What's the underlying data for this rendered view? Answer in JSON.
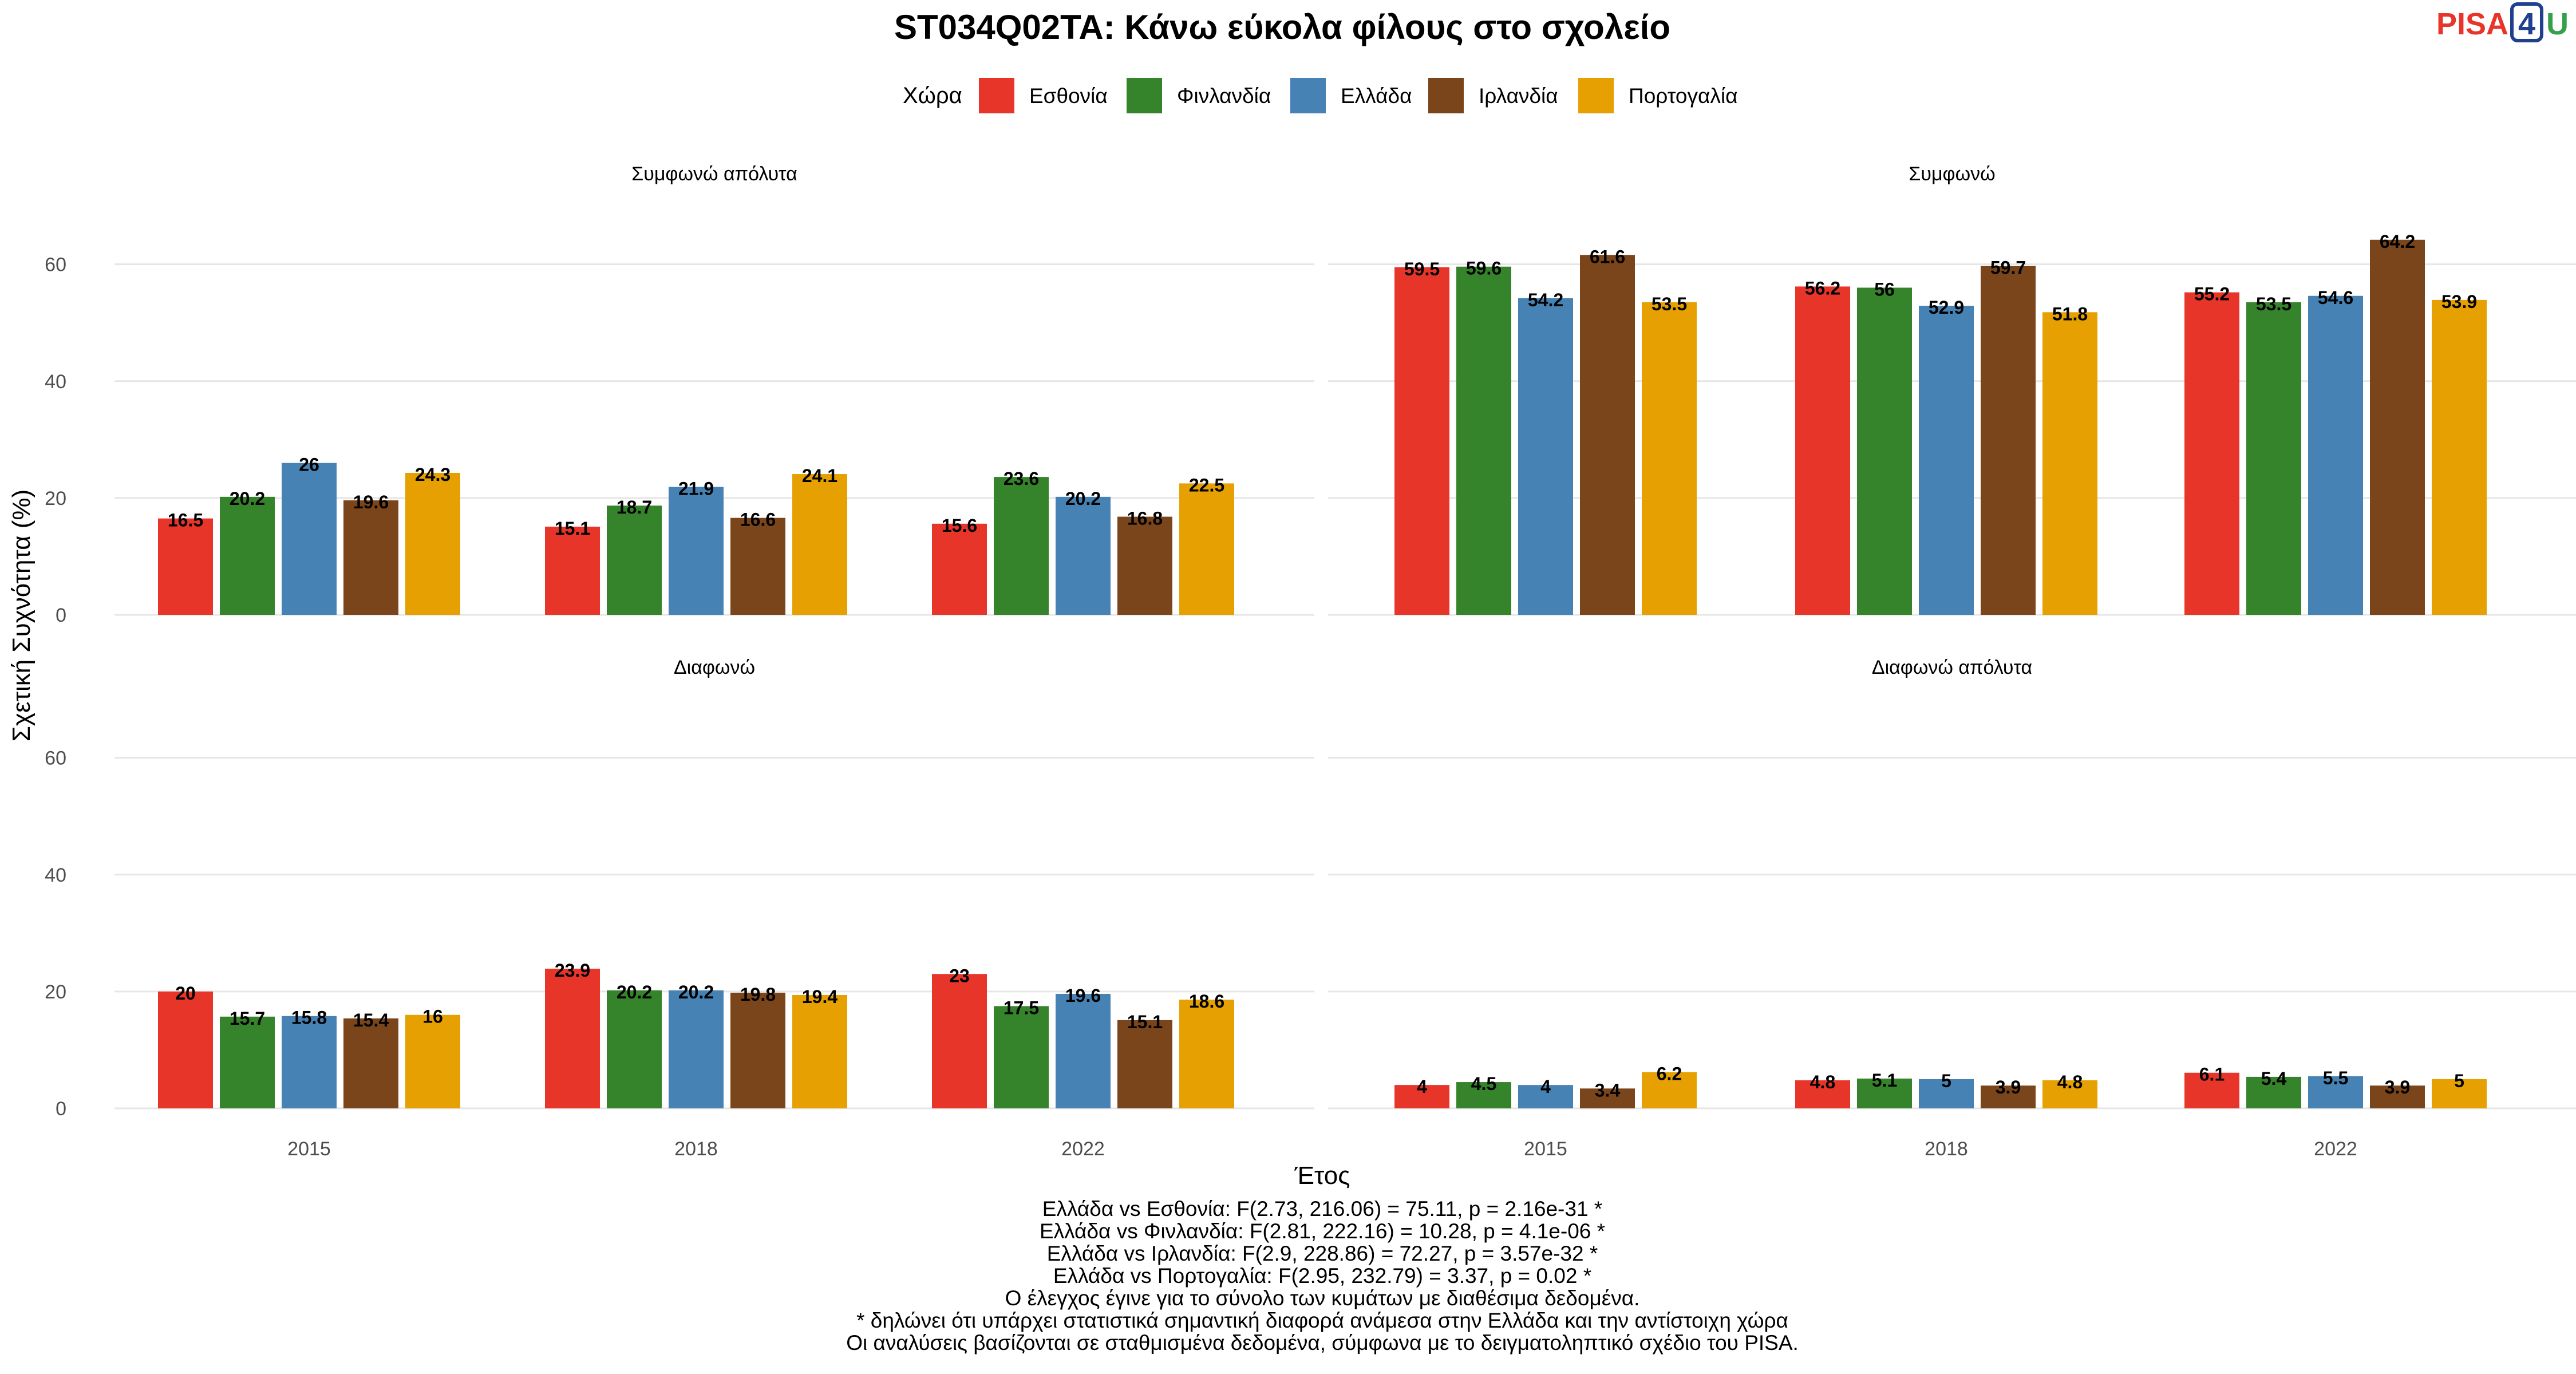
{
  "chart_data": {
    "type": "bar",
    "title": "ST034Q02TA: Κάνω εύκολα φίλους στο σχολείο",
    "xlabel": "Έτος",
    "ylabel": "Σχετική Συχνότητα (%)",
    "ylim": [
      0,
      68
    ],
    "yticks": [
      0,
      20,
      40,
      60
    ],
    "grid": true,
    "legend": {
      "title": "Χώρα",
      "placement": "top",
      "entries": [
        "Εσθονία",
        "Φινλανδία",
        "Ελλάδα",
        "Ιρλανδία",
        "Πορτογαλία"
      ]
    },
    "categories": [
      "2015",
      "2018",
      "2022"
    ],
    "colors": [
      "#E8352A",
      "#35832A",
      "#4682B4",
      "#7A451A",
      "#E6A001"
    ],
    "panels": [
      {
        "title": "Συμφωνώ απόλυτα",
        "series": [
          {
            "name": "Εσθονία",
            "values": [
              16.5,
              15.1,
              15.6
            ]
          },
          {
            "name": "Φινλανδία",
            "values": [
              20.2,
              18.7,
              23.6
            ]
          },
          {
            "name": "Ελλάδα",
            "values": [
              26,
              21.9,
              20.2
            ]
          },
          {
            "name": "Ιρλανδία",
            "values": [
              19.6,
              16.6,
              16.8
            ]
          },
          {
            "name": "Πορτογαλία",
            "values": [
              24.3,
              24.1,
              22.5
            ]
          }
        ]
      },
      {
        "title": "Συμφωνώ",
        "series": [
          {
            "name": "Εσθονία",
            "values": [
              59.5,
              56.2,
              55.2
            ]
          },
          {
            "name": "Φινλανδία",
            "values": [
              59.6,
              56,
              53.5
            ]
          },
          {
            "name": "Ελλάδα",
            "values": [
              54.2,
              52.9,
              54.6
            ]
          },
          {
            "name": "Ιρλανδία",
            "values": [
              61.6,
              59.7,
              64.2
            ]
          },
          {
            "name": "Πορτογαλία",
            "values": [
              53.5,
              51.8,
              53.9
            ]
          }
        ]
      },
      {
        "title": "Διαφωνώ",
        "series": [
          {
            "name": "Εσθονία",
            "values": [
              20,
              23.9,
              23
            ]
          },
          {
            "name": "Φινλανδία",
            "values": [
              15.7,
              20.2,
              17.5
            ]
          },
          {
            "name": "Ελλάδα",
            "values": [
              15.8,
              20.2,
              19.6
            ]
          },
          {
            "name": "Ιρλανδία",
            "values": [
              15.4,
              19.8,
              15.1
            ]
          },
          {
            "name": "Πορτογαλία",
            "values": [
              16,
              19.4,
              18.6
            ]
          }
        ]
      },
      {
        "title": "Διαφωνώ απόλυτα",
        "series": [
          {
            "name": "Εσθονία",
            "values": [
              4,
              4.8,
              6.1
            ]
          },
          {
            "name": "Φινλανδία",
            "values": [
              4.5,
              5.1,
              5.4
            ]
          },
          {
            "name": "Ελλάδα",
            "values": [
              4,
              5,
              5.5
            ]
          },
          {
            "name": "Ιρλανδία",
            "values": [
              3.4,
              3.9,
              3.9
            ]
          },
          {
            "name": "Πορτογαλία",
            "values": [
              6.2,
              4.8,
              5
            ]
          }
        ]
      }
    ],
    "caption": [
      "Ελλάδα vs Εσθονία: F(2.73, 216.06) = 75.11, p = 2.16e-31 *",
      "Ελλάδα vs Φινλανδία: F(2.81, 222.16) = 10.28, p = 4.1e-06 *",
      "Ελλάδα vs Ιρλανδία: F(2.9, 228.86) = 72.27, p = 3.57e-32 *",
      "Ελλάδα vs Πορτογαλία: F(2.95, 232.79) = 3.37, p = 0.02 *",
      "Ο έλεγχος έγινε για το σύνολο των κυμάτων με διαθέσιμα δεδομένα.",
      "* δηλώνει ότι υπάρχει στατιστικά σημαντική διαφορά ανάμεσα στην Ελλάδα και την αντίστοιχη χώρα",
      "Οι αναλύσεις βασίζονται σε σταθμισμένα δεδομένα, σύμφωνα με το δειγματοληπτικό σχέδιο του PISA."
    ]
  },
  "logo": {
    "text_left": "PISA",
    "text_box": "4",
    "text_right": "U",
    "colors": {
      "left": "#E8352A",
      "box": "#1F3F8F",
      "right": "#35A047"
    }
  }
}
